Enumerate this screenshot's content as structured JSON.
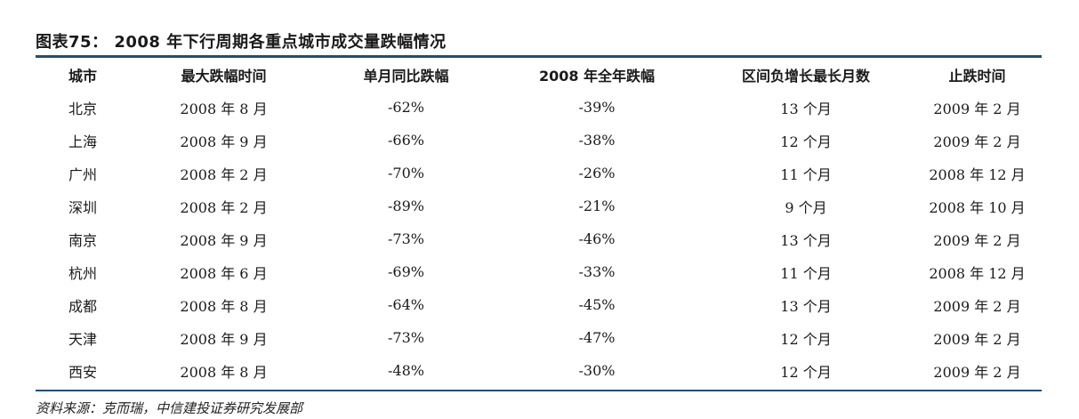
{
  "title": "图表75：  2008 年下行周期各重点城市成交量跌幅情况",
  "table": {
    "headers": [
      "城市",
      "最大跌幅时间",
      "单月同比跌幅",
      "2008 年全年跌幅",
      "区间负增长最长月数",
      "止跌时间"
    ],
    "rows": [
      [
        "北京",
        "2008 年 8 月",
        "-62%",
        "-39%",
        "13 个月",
        "2009 年 2 月"
      ],
      [
        "上海",
        "2008 年 9 月",
        "-66%",
        "-38%",
        "12 个月",
        "2009 年 2 月"
      ],
      [
        "广州",
        "2008 年 2 月",
        "-70%",
        "-26%",
        "11 个月",
        "2008 年 12 月"
      ],
      [
        "深圳",
        "2008 年 2 月",
        "-89%",
        "-21%",
        "9 个月",
        "2008 年 10 月"
      ],
      [
        "南京",
        "2008 年 9 月",
        "-73%",
        "-46%",
        "13 个月",
        "2009 年 2 月"
      ],
      [
        "杭州",
        "2008 年 6 月",
        "-69%",
        "-33%",
        "11 个月",
        "2008 年 12 月"
      ],
      [
        "成都",
        "2008 年 8 月",
        "-64%",
        "-45%",
        "13 个月",
        "2009 年 2 月"
      ],
      [
        "天津",
        "2008 年 9 月",
        "-73%",
        "-47%",
        "12 个月",
        "2009 年 2 月"
      ],
      [
        "西安",
        "2008 年 8 月",
        "-48%",
        "-30%",
        "12 个月",
        "2009 年 2 月"
      ]
    ]
  },
  "source": "资料来源：克而瑞，中信建投证券研究发展部",
  "colors": {
    "rule": "#1f4e79"
  }
}
